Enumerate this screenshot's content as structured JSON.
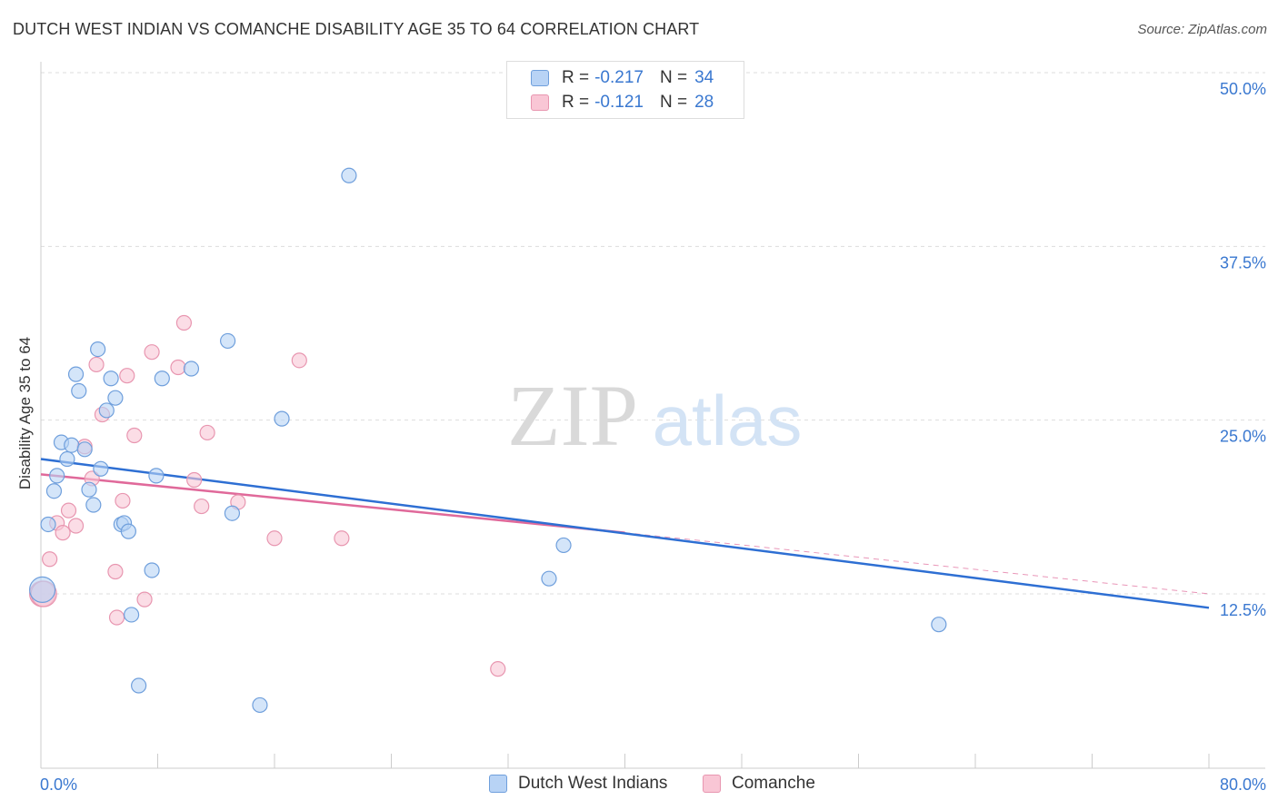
{
  "title": "DUTCH WEST INDIAN VS COMANCHE DISABILITY AGE 35 TO 64 CORRELATION CHART",
  "source": "Source: ZipAtlas.com",
  "watermark": {
    "zip": "ZIP",
    "atlas": "atlas"
  },
  "legend": {
    "rows": [
      {
        "r_label": "R =",
        "r_value": "-0.217",
        "n_label": "N =",
        "n_value": "34"
      },
      {
        "r_label": "R =",
        "r_value": "-0.121",
        "n_label": "N =",
        "n_value": "28"
      }
    ]
  },
  "bottom_legend": [
    "Dutch West Indians",
    "Comanche"
  ],
  "colors": {
    "blue_fill": "#b8d3f5",
    "blue_stroke": "#6f9fdc",
    "blue_line": "#2e6fd3",
    "pink_fill": "#f9c6d5",
    "pink_stroke": "#e896b0",
    "pink_line": "#e0699a",
    "axis_text": "#3a78d0",
    "grid": "#dddddd"
  },
  "chart_data": {
    "type": "scatter",
    "title": "DUTCH WEST INDIAN VS COMANCHE DISABILITY AGE 35 TO 64 CORRELATION CHART",
    "xlabel": "",
    "ylabel": "Disability Age 35 to 64",
    "xlim": [
      0,
      80
    ],
    "ylim": [
      0,
      52
    ],
    "x_tick_labels": [
      "0.0%",
      "80.0%"
    ],
    "y_ticks": [
      12.5,
      25.0,
      37.5,
      50.0
    ],
    "y_tick_labels": [
      "12.5%",
      "25.0%",
      "37.5%",
      "50.0%"
    ],
    "grid": true,
    "legend_position": "top-center",
    "series": [
      {
        "name": "Dutch West Indians",
        "color": "#b8d3f5",
        "r": -0.217,
        "n": 34,
        "points": [
          [
            0.1,
            12.8
          ],
          [
            0.5,
            17.5
          ],
          [
            0.9,
            19.9
          ],
          [
            1.1,
            21.0
          ],
          [
            1.4,
            23.4
          ],
          [
            1.8,
            22.2
          ],
          [
            2.1,
            23.2
          ],
          [
            2.4,
            28.3
          ],
          [
            2.6,
            27.1
          ],
          [
            3.0,
            22.9
          ],
          [
            3.3,
            20.0
          ],
          [
            3.6,
            18.9
          ],
          [
            3.9,
            30.1
          ],
          [
            4.1,
            21.5
          ],
          [
            4.5,
            25.7
          ],
          [
            4.8,
            28.0
          ],
          [
            5.1,
            26.6
          ],
          [
            5.5,
            17.5
          ],
          [
            5.7,
            17.6
          ],
          [
            6.0,
            17.0
          ],
          [
            6.2,
            11.0
          ],
          [
            6.7,
            5.9
          ],
          [
            7.6,
            14.2
          ],
          [
            7.9,
            21.0
          ],
          [
            8.3,
            28.0
          ],
          [
            10.3,
            28.7
          ],
          [
            12.8,
            30.7
          ],
          [
            13.1,
            18.3
          ],
          [
            15.0,
            4.5
          ],
          [
            16.5,
            25.1
          ],
          [
            21.1,
            42.6
          ],
          [
            34.8,
            13.6
          ],
          [
            35.8,
            16.0
          ],
          [
            61.5,
            10.3
          ]
        ],
        "trend": {
          "x": [
            0,
            80
          ],
          "y": [
            22.2,
            11.5
          ]
        }
      },
      {
        "name": "Comanche",
        "color": "#f9c6d5",
        "r": -0.121,
        "n": 28,
        "points": [
          [
            0.1,
            12.5
          ],
          [
            0.6,
            15.0
          ],
          [
            1.1,
            17.6
          ],
          [
            1.5,
            16.9
          ],
          [
            1.9,
            18.5
          ],
          [
            2.4,
            17.4
          ],
          [
            3.0,
            23.1
          ],
          [
            3.5,
            20.8
          ],
          [
            3.8,
            29.0
          ],
          [
            4.2,
            25.4
          ],
          [
            5.1,
            14.1
          ],
          [
            5.2,
            10.8
          ],
          [
            5.6,
            19.2
          ],
          [
            5.9,
            28.2
          ],
          [
            6.4,
            23.9
          ],
          [
            7.1,
            12.1
          ],
          [
            7.6,
            29.9
          ],
          [
            9.4,
            28.8
          ],
          [
            9.8,
            32.0
          ],
          [
            10.5,
            20.7
          ],
          [
            11.0,
            18.8
          ],
          [
            11.4,
            24.1
          ],
          [
            13.5,
            19.1
          ],
          [
            16.0,
            16.5
          ],
          [
            17.7,
            29.3
          ],
          [
            20.6,
            16.5
          ],
          [
            31.3,
            7.1
          ],
          [
            0.2,
            12.5
          ]
        ],
        "trend": {
          "x": [
            0,
            40
          ],
          "y": [
            21.1,
            16.9
          ]
        },
        "trend_extension": {
          "x": [
            40,
            80
          ],
          "y": [
            16.9,
            12.5
          ]
        }
      }
    ]
  }
}
